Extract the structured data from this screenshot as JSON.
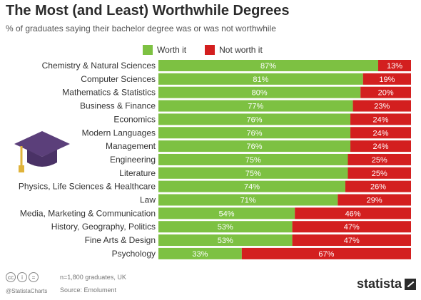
{
  "header": {
    "title": "The Most (and Least) Worthwhile Degrees",
    "subtitle": "% of graduates saying their bachelor degree was or was not worthwhile"
  },
  "legend": {
    "worth_label": "Worth it",
    "not_worth_label": "Not worth it"
  },
  "colors": {
    "worth": "#7dc142",
    "not_worth": "#d31f1f",
    "worth_text": "#ffffff",
    "not_worth_text": "#ffffff"
  },
  "chart_data": {
    "type": "bar",
    "orientation": "horizontal",
    "stacked": true,
    "categories": [
      "Chemistry & Natural Sciences",
      "Computer Sciences",
      "Mathematics & Statistics",
      "Business & Finance",
      "Economics",
      "Modern Languages",
      "Management",
      "Engineering",
      "Literature",
      "Physics, Life Sciences & Healthcare",
      "Law",
      "Media, Marketing & Communication",
      "History, Geography, Politics",
      "Fine Arts & Design",
      "Psychology"
    ],
    "series": [
      {
        "name": "Worth it",
        "values": [
          87,
          81,
          80,
          77,
          76,
          76,
          76,
          75,
          75,
          74,
          71,
          54,
          53,
          53,
          33
        ]
      },
      {
        "name": "Not worth it",
        "values": [
          13,
          19,
          20,
          23,
          24,
          24,
          24,
          25,
          25,
          26,
          29,
          46,
          47,
          47,
          67
        ]
      }
    ],
    "value_suffix": "%",
    "xlim": [
      0,
      100
    ],
    "legend_position": "top"
  },
  "footer": {
    "sample_note": "n=1,800 graduates, UK",
    "source": "Source: Emolument",
    "handle": "@StatistaCharts",
    "brand": "statista",
    "license_icons": [
      "cc-icon",
      "attribution-icon",
      "no-derivatives-icon"
    ]
  }
}
